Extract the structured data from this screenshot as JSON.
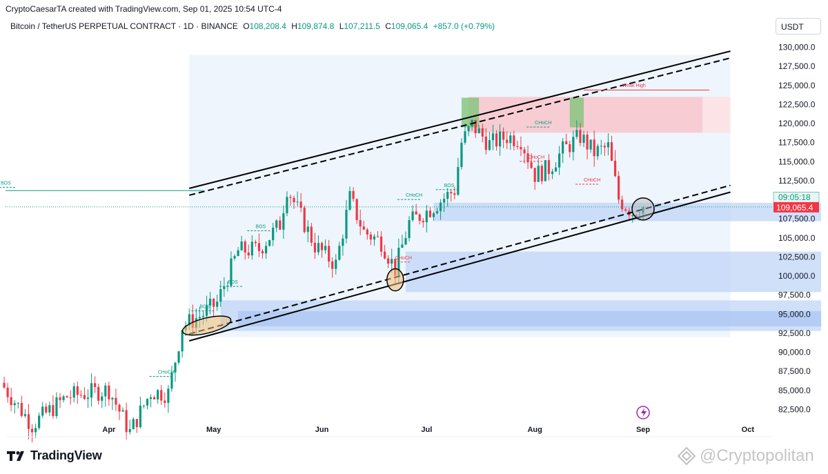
{
  "header": {
    "creator_line": "CryptoCaesarTA created with TradingView.com, Sep 01, 2025 10:54 UTC-4",
    "symbol": "Bitcoin / TetherUS PERPETUAL CONTRACT · 1D · BINANCE",
    "open_label": "O",
    "open": "108,208.4",
    "high_label": "H",
    "high": "109,874.8",
    "low_label": "L",
    "low": "107,211.5",
    "close_label": "C",
    "close": "109,065.4",
    "change": "+857.0 (+0.79%)",
    "currency": "USDT"
  },
  "colors": {
    "up": "#089981",
    "down": "#f23645",
    "zone_blue": "#bcd3f7",
    "zone_red": "#f8c6cb",
    "zone_green": "#7fc47a",
    "price_tag": "#f23645",
    "timer_tag": "#e9f5f2"
  },
  "chart_data": {
    "type": "candlestick",
    "xlabel": "",
    "ylabel": "",
    "ylim": [
      81000,
      131500
    ],
    "y_ticks": [
      "130,000.0",
      "127,500.0",
      "125,000.0",
      "122,500.0",
      "120,000.0",
      "117,500.0",
      "115,000.0",
      "112,500.0",
      "110,000.0",
      "107,500.0",
      "105,000.0",
      "102,500.0",
      "100,000.0",
      "97,500.0",
      "95,000.0",
      "92,500.0",
      "90,000.0",
      "87,500.0",
      "85,000.0",
      "82,500.0"
    ],
    "x_ticks": [
      {
        "label": "Apr",
        "date": "2025-04-01"
      },
      {
        "label": "May",
        "date": "2025-05-01"
      },
      {
        "label": "Jun",
        "date": "2025-06-01"
      },
      {
        "label": "Jul",
        "date": "2025-07-01"
      },
      {
        "label": "Aug",
        "date": "2025-08-01"
      },
      {
        "label": "Sep",
        "date": "2025-09-01"
      },
      {
        "label": "Oct",
        "date": "2025-10-01"
      }
    ],
    "last_price": "109,065.4",
    "countdown": "09:05:18",
    "closes": [
      {
        "date": "2025-03-01",
        "close": 86000
      },
      {
        "date": "2025-03-10",
        "close": 80500
      },
      {
        "date": "2025-03-20",
        "close": 84200
      },
      {
        "date": "2025-04-01",
        "close": 85100
      },
      {
        "date": "2025-04-07",
        "close": 79500
      },
      {
        "date": "2025-04-13",
        "close": 84800
      },
      {
        "date": "2025-04-18",
        "close": 84600
      },
      {
        "date": "2025-04-22",
        "close": 93400
      },
      {
        "date": "2025-04-28",
        "close": 95000
      },
      {
        "date": "2025-05-02",
        "close": 96500
      },
      {
        "date": "2025-05-08",
        "close": 103300
      },
      {
        "date": "2025-05-14",
        "close": 103500
      },
      {
        "date": "2025-05-20",
        "close": 106800
      },
      {
        "date": "2025-05-22",
        "close": 111600
      },
      {
        "date": "2025-05-30",
        "close": 104000
      },
      {
        "date": "2025-06-05",
        "close": 101500
      },
      {
        "date": "2025-06-09",
        "close": 110200
      },
      {
        "date": "2025-06-13",
        "close": 105800
      },
      {
        "date": "2025-06-18",
        "close": 104500
      },
      {
        "date": "2025-06-22",
        "close": 100900
      },
      {
        "date": "2025-06-26",
        "close": 107000
      },
      {
        "date": "2025-07-02",
        "close": 108800
      },
      {
        "date": "2025-07-09",
        "close": 111300
      },
      {
        "date": "2025-07-11",
        "close": 117500
      },
      {
        "date": "2025-07-14",
        "close": 119800
      },
      {
        "date": "2025-07-19",
        "close": 117300
      },
      {
        "date": "2025-07-24",
        "close": 118300
      },
      {
        "date": "2025-07-28",
        "close": 117900
      },
      {
        "date": "2025-08-01",
        "close": 113300
      },
      {
        "date": "2025-08-05",
        "close": 114100
      },
      {
        "date": "2025-08-09",
        "close": 116500
      },
      {
        "date": "2025-08-14",
        "close": 118300
      },
      {
        "date": "2025-08-18",
        "close": 116200
      },
      {
        "date": "2025-08-22",
        "close": 116900
      },
      {
        "date": "2025-08-25",
        "close": 110100
      },
      {
        "date": "2025-08-29",
        "close": 108400
      },
      {
        "date": "2025-09-01",
        "close": 109065
      }
    ],
    "annotations": [
      {
        "text": "BOS",
        "date": "2025-04-27",
        "price": 95800,
        "color": "#089981"
      },
      {
        "text": "BOS",
        "date": "2025-05-05",
        "price": 99000,
        "color": "#089981"
      },
      {
        "text": "BOS",
        "date": "2025-05-13",
        "price": 106300,
        "color": "#089981"
      },
      {
        "text": "CHoCH",
        "date": "2025-04-15",
        "price": 87200,
        "color": "#089981"
      },
      {
        "text": "CHoCH",
        "date": "2025-06-25",
        "price": 110400,
        "color": "#089981"
      },
      {
        "text": "BOS",
        "date": "2025-07-06",
        "price": 111700,
        "color": "#089981"
      },
      {
        "text": "CHoCH",
        "date": "2025-06-22",
        "price": 102200,
        "color": "#f23645"
      },
      {
        "text": "CHoCH",
        "date": "2025-08-01",
        "price": 119900,
        "color": "#089981"
      },
      {
        "text": "CHoCH",
        "date": "2025-07-30",
        "price": 115400,
        "color": "#f23645"
      },
      {
        "text": "CHoCH",
        "date": "2025-08-15",
        "price": 112400,
        "color": "#f23645"
      },
      {
        "text": "Weak High",
        "date": "2025-08-26",
        "price": 124800,
        "color": "#f23645"
      },
      {
        "text": "BOS",
        "date": "2025-03-01",
        "price": 112000,
        "color": "#089981"
      }
    ],
    "zones": [
      {
        "kind": "supply",
        "from": "2025-07-13",
        "to": "2025-09-18",
        "top": 123500,
        "bottom": 118800
      },
      {
        "kind": "demand",
        "from": "2025-07-03",
        "to": "2025-10-22",
        "top": 109600,
        "bottom": 107200
      },
      {
        "kind": "demand",
        "from": "2025-06-25",
        "to": "2025-10-22",
        "top": 103200,
        "bottom": 97900
      },
      {
        "kind": "demand",
        "from": "2025-05-03",
        "to": "2025-10-22",
        "top": 96800,
        "bottom": 92800
      }
    ],
    "channel": {
      "upper": [
        {
          "date": "2025-04-24",
          "price": 111500
        },
        {
          "date": "2025-09-26",
          "price": 129500
        }
      ],
      "lower": [
        {
          "date": "2025-04-24",
          "price": 91500
        },
        {
          "date": "2025-09-26",
          "price": 111000
        }
      ]
    },
    "highlight_circles": [
      {
        "date": "2025-04-29",
        "price": 93500
      },
      {
        "date": "2025-06-22",
        "price": 99500
      },
      {
        "date": "2025-09-01",
        "price": 108800
      }
    ]
  },
  "footer": {
    "brand": "TradingView",
    "watermark": "@Cryptopolitan"
  }
}
